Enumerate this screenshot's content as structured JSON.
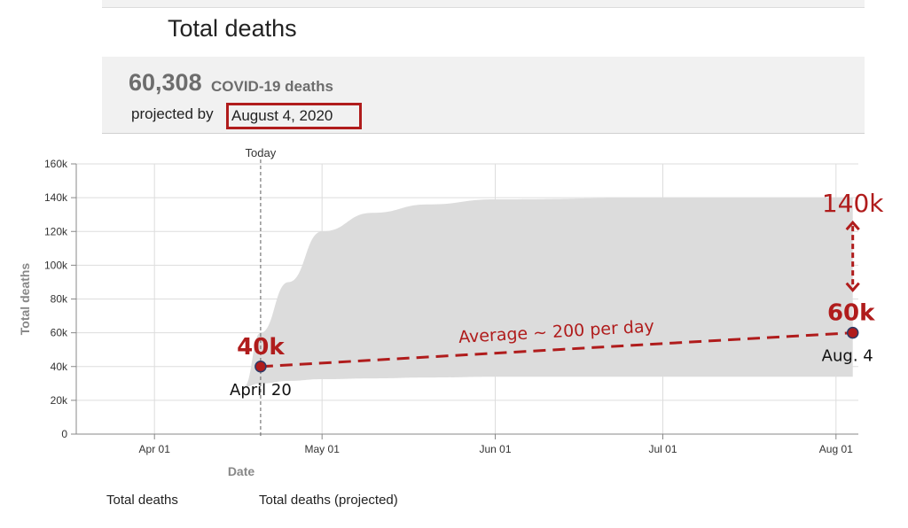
{
  "page": {
    "title": "Total deaths"
  },
  "summary": {
    "count": "60,308",
    "unit": "COVID-19 deaths",
    "projected_label": "projected by",
    "projected_date": "August 4, 2020"
  },
  "legend": [
    "Total deaths",
    "Total deaths (projected)"
  ],
  "colors": {
    "band": "#dcdcdc",
    "annotation": "#b01c1c",
    "grid": "#dddddd",
    "axis": "#888888"
  },
  "chart_data": {
    "type": "area",
    "title": "",
    "xlabel": "Date",
    "ylabel": "Total deaths",
    "x_ticks": [
      "Apr 01",
      "May 01",
      "Jun 01",
      "Jul 01",
      "Aug 01"
    ],
    "y_ticks": [
      "0",
      "20k",
      "40k",
      "60k",
      "80k",
      "100k",
      "120k",
      "140k",
      "160k"
    ],
    "ylim": [
      0,
      160000
    ],
    "xlim": [
      "2020-03-18",
      "2020-08-05"
    ],
    "grid": true,
    "today": {
      "label": "Today",
      "date": "2020-04-20"
    },
    "band": {
      "x": [
        "2020-04-17",
        "2020-04-20",
        "2020-04-25",
        "2020-05-01",
        "2020-05-10",
        "2020-05-20",
        "2020-06-01",
        "2020-07-01",
        "2020-08-04"
      ],
      "upper": [
        28000,
        60000,
        90000,
        120000,
        131000,
        136000,
        139000,
        140000,
        140000
      ],
      "lower": [
        28000,
        30000,
        31500,
        32500,
        33000,
        33500,
        34000,
        34000,
        34000
      ]
    },
    "points": [
      {
        "date": "2020-04-20",
        "value": 40000,
        "value_label": "40k",
        "date_label": "April 20"
      },
      {
        "date": "2020-08-04",
        "value": 60000,
        "value_label": "60k",
        "date_label": "Aug. 4"
      }
    ],
    "annotations": {
      "average_label": "Average ~ 200 per day",
      "upper_label": "140k"
    }
  }
}
